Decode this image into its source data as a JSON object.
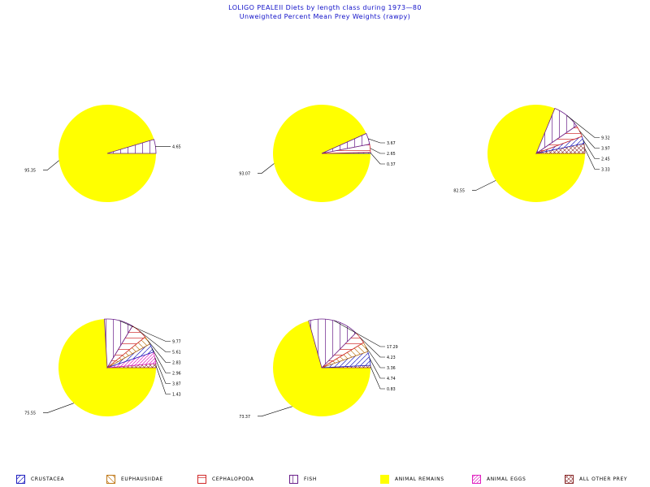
{
  "header": {
    "title": "LOLIGO PEALEII Diets by length class during 1973—80",
    "subtitle": "Unweighted Percent Mean Prey Weights (rawpy)"
  },
  "colors": {
    "title": "#1010c8",
    "CRUSTACEA": "#2020c0",
    "EUPHAUSIIDAE": "#c07818",
    "CEPHALOPODA": "#d02828",
    "FISH": "#6a1f8a",
    "ANIMAL REMAINS": "#ffff00",
    "ANIMAL EGGS": "#e020c0",
    "ALL OTHER PREY": "#8a2a2a"
  },
  "legend": [
    {
      "key": "CRUSTACEA",
      "label": "CRUSTACEA",
      "icon": "diagonal-hatch"
    },
    {
      "key": "EUPHAUSIIDAE",
      "label": "EUPHAUSIIDAE",
      "icon": "diagonal-hatch"
    },
    {
      "key": "CEPHALOPODA",
      "label": "CEPHALOPODA",
      "icon": "horizontal-hatch"
    },
    {
      "key": "FISH",
      "label": "FISH",
      "icon": "vertical-hatch"
    },
    {
      "key": "ANIMAL REMAINS",
      "label": "ANIMAL REMAINS",
      "icon": "solid-fill"
    },
    {
      "key": "ANIMAL EGGS",
      "label": "ANIMAL EGGS",
      "icon": "diagonal-hatch"
    },
    {
      "key": "ALL OTHER PREY",
      "label": "ALL OTHER PREY",
      "icon": "cross-hatch"
    }
  ],
  "chart_data": [
    {
      "type": "pie",
      "title": "",
      "slices": [
        {
          "category": "ANIMAL REMAINS",
          "value": 95.35
        },
        {
          "category": "FISH",
          "value": 4.65
        }
      ],
      "labels": [
        "95.35",
        "4.65"
      ]
    },
    {
      "type": "pie",
      "title": "",
      "slices": [
        {
          "category": "ANIMAL REMAINS",
          "value": 93.07
        },
        {
          "category": "FISH",
          "value": 3.67
        },
        {
          "category": "CEPHALOPODA",
          "value": 2.65
        },
        {
          "category": "CRUSTACEA",
          "value": 0.37
        }
      ],
      "labels": [
        "93.07",
        "3.67",
        "2.65",
        "0.37"
      ]
    },
    {
      "type": "pie",
      "title": "",
      "slices": [
        {
          "category": "ANIMAL REMAINS",
          "value": 82.55
        },
        {
          "category": "FISH",
          "value": 9.32
        },
        {
          "category": "CEPHALOPODA",
          "value": 3.97
        },
        {
          "category": "CRUSTACEA",
          "value": 2.45
        },
        {
          "category": "ALL OTHER PREY",
          "value": 3.33
        }
      ],
      "labels": [
        "82.55",
        "9.32",
        "3.97",
        "2.45",
        "3.33"
      ]
    },
    {
      "type": "pie",
      "title": "",
      "slices": [
        {
          "category": "ANIMAL REMAINS",
          "value": 75.55
        },
        {
          "category": "FISH",
          "value": 9.77
        },
        {
          "category": "CEPHALOPODA",
          "value": 5.61
        },
        {
          "category": "EUPHAUSIIDAE",
          "value": 2.83
        },
        {
          "category": "CRUSTACEA",
          "value": 2.96
        },
        {
          "category": "ANIMAL EGGS",
          "value": 3.87
        },
        {
          "category": "ALL OTHER PREY",
          "value": 1.43
        }
      ],
      "labels": [
        "75.55",
        "9.77",
        "5.61",
        "2.83",
        "2.96",
        "3.87",
        "1.43"
      ]
    },
    {
      "type": "pie",
      "title": "",
      "slices": [
        {
          "category": "ANIMAL REMAINS",
          "value": 73.37
        },
        {
          "category": "FISH",
          "value": 17.29
        },
        {
          "category": "CEPHALOPODA",
          "value": 4.23
        },
        {
          "category": "EUPHAUSIIDAE",
          "value": 3.36
        },
        {
          "category": "CRUSTACEA",
          "value": 4.74
        },
        {
          "category": "ALL OTHER PREY",
          "value": 0.83
        }
      ],
      "labels": [
        "73.37",
        "17.29",
        "4.23",
        "3.36",
        "4.74",
        "0.83"
      ]
    }
  ]
}
